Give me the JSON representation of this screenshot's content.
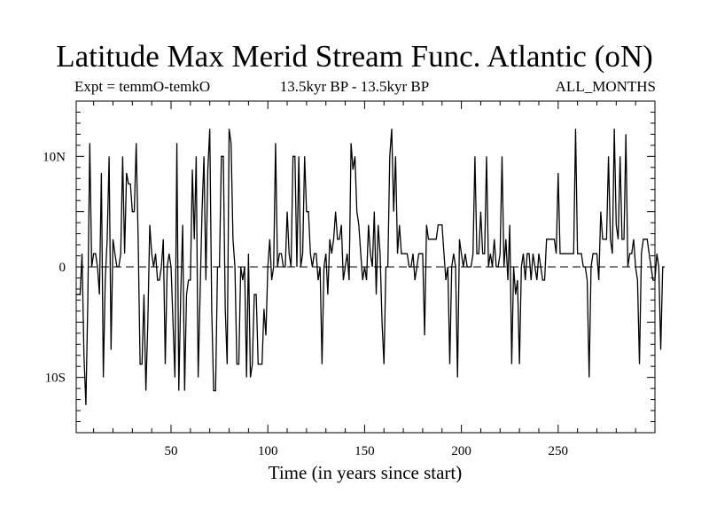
{
  "chart_data": {
    "type": "line",
    "title": "Latitude Max Merid Stream Func. Atlantic (oN)",
    "experiment": "Expt = temmO-temkO",
    "period": "13.5kyr BP - 13.5kyr BP",
    "season": "ALL_MONTHS",
    "xlabel": "Time (in years since start)",
    "ylabel": "",
    "xlim": [
      1,
      300
    ],
    "ylim": [
      -15,
      15
    ],
    "x_ticks": [
      50,
      100,
      150,
      200,
      250
    ],
    "x_tick_labels": [
      "50",
      "100",
      "150",
      "200",
      "250"
    ],
    "y_ticks": [
      -10,
      0,
      10
    ],
    "y_tick_labels": [
      "10S",
      "0",
      "10N"
    ],
    "zero_line": "dashed",
    "grid": false,
    "series": [
      {
        "x_start": 1,
        "x_step": 1,
        "values": [
          -2.5,
          -2.5,
          -2.5,
          1.2,
          -8,
          -12.5,
          -3,
          11.2,
          0,
          1.2,
          1.2,
          0,
          -2.5,
          8.5,
          -10,
          -1.2,
          2.5,
          10,
          -7.5,
          2.5,
          1.2,
          0,
          0,
          1.2,
          10,
          1.2,
          8.5,
          7.5,
          7.5,
          5,
          5,
          11.2,
          2.5,
          -8.8,
          -8.8,
          -2.5,
          -11.2,
          -5,
          3.8,
          1.2,
          0,
          1.2,
          -1.2,
          -1.2,
          0,
          2.5,
          -8.8,
          0,
          1.2,
          0,
          -5,
          -10,
          11.2,
          -11.2,
          -2.5,
          3.8,
          -11.2,
          -2.5,
          -1.2,
          -1.2,
          8.8,
          2.5,
          10,
          -10,
          -2.5,
          5,
          10,
          -1.2,
          8.8,
          12.5,
          -3.8,
          -11.2,
          -11.2,
          0,
          0,
          10,
          10,
          -3.8,
          -8.8,
          12.5,
          11.2,
          2.5,
          0,
          -8.8,
          -8.8,
          0,
          -1.2,
          0,
          -10,
          1.2,
          -10,
          -8.8,
          -2.5,
          -2.5,
          -8.8,
          -8.8,
          -8.8,
          -3.8,
          -6.2,
          0,
          2.5,
          -1.2,
          0,
          11.2,
          0,
          1.2,
          1.2,
          0,
          0,
          5,
          1.2,
          0,
          10,
          10,
          0,
          10,
          0,
          1.2,
          10,
          5,
          5,
          1.2,
          0,
          1.2,
          1.2,
          -1.2,
          0,
          -8.8,
          0,
          1.2,
          -2.5,
          2.5,
          1.2,
          2.5,
          5,
          2.5,
          2.5,
          3.8,
          -1.2,
          0,
          1.2,
          -1.2,
          11.2,
          8.8,
          10,
          5,
          3.8,
          1.2,
          -1.2,
          0,
          -1.2,
          3.8,
          1.2,
          0,
          5,
          -2.5,
          3.8,
          1.2,
          -5,
          -8.8,
          0,
          0,
          10,
          12.5,
          5,
          10,
          1.2,
          3.8,
          1.2,
          1.2,
          1.2,
          1.2,
          0,
          0,
          1.2,
          -1.2,
          0,
          1.2,
          1.2,
          1.2,
          -6.2,
          3.8,
          2.5,
          2.5,
          2.5,
          2.5,
          2.5,
          3.8,
          3.8,
          3.8,
          1.2,
          -1.2,
          0,
          -8.8,
          0,
          1.2,
          0,
          -10,
          2.5,
          1.2,
          0,
          1.2,
          0,
          0,
          0,
          1.2,
          10,
          1.2,
          1.2,
          5,
          1.2,
          1.2,
          10,
          0,
          1.2,
          0,
          2.5,
          0,
          0,
          1.2,
          10,
          0,
          2.5,
          -1.2,
          3.8,
          -8.8,
          0,
          -2.5,
          -1.2,
          -8.8,
          0,
          1.2,
          -1.2,
          1.2,
          1.2,
          -1.2,
          1.2,
          0,
          -1.2,
          1.2,
          0,
          -1.2,
          -1.2,
          2.5,
          2.5,
          2.5,
          2.5,
          2.5,
          1.2,
          8.5,
          1.2,
          1.2,
          1.2,
          1.2,
          1.2,
          1.2,
          1.2,
          1.2,
          12.5,
          1.2,
          1.2,
          1.2,
          0,
          0,
          -1.2,
          -10,
          0,
          1.2,
          1.2,
          1.2,
          -1.2,
          5,
          2.5,
          2.5,
          2.5,
          10,
          2.5,
          1.2,
          12.5,
          3.8,
          2.5,
          10,
          2.5,
          2.5,
          12,
          0,
          1.2,
          1.2,
          2.5,
          0,
          -1.2,
          -8.8,
          1.2,
          2.5,
          2.5,
          2.5,
          1.2,
          0,
          -1.2,
          -1.2,
          1.2,
          0,
          -7.5,
          0,
          0
        ]
      }
    ]
  }
}
